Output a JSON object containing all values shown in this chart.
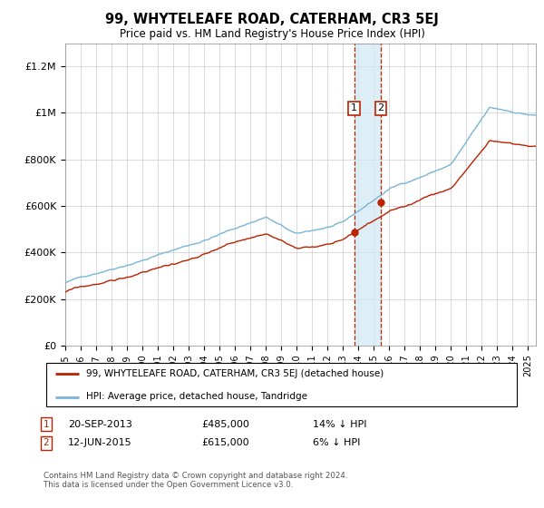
{
  "title": "99, WHYTELEAFE ROAD, CATERHAM, CR3 5EJ",
  "subtitle": "Price paid vs. HM Land Registry's House Price Index (HPI)",
  "hpi_label": "HPI: Average price, detached house, Tandridge",
  "property_label": "99, WHYTELEAFE ROAD, CATERHAM, CR3 5EJ (detached house)",
  "footer": "Contains HM Land Registry data © Crown copyright and database right 2024.\nThis data is licensed under the Open Government Licence v3.0.",
  "transaction1_date": "20-SEP-2013",
  "transaction1_price": "£485,000",
  "transaction1_note": "14% ↓ HPI",
  "transaction1_year": 2013.72,
  "transaction1_value": 485000,
  "transaction2_date": "12-JUN-2015",
  "transaction2_price": "£615,000",
  "transaction2_note": "6% ↓ HPI",
  "transaction2_year": 2015.45,
  "transaction2_value": 615000,
  "hpi_color": "#7ab4d8",
  "property_color": "#bb2200",
  "shade_color": "#d0e8f5",
  "ylim": [
    0,
    1300000
  ],
  "yticks": [
    0,
    200000,
    400000,
    600000,
    800000,
    1000000,
    1200000
  ],
  "ytick_labels": [
    "£0",
    "£200K",
    "£400K",
    "£600K",
    "£800K",
    "£1M",
    "£1.2M"
  ],
  "xlim_start": 1995.0,
  "xlim_end": 2025.5,
  "seed": 42
}
